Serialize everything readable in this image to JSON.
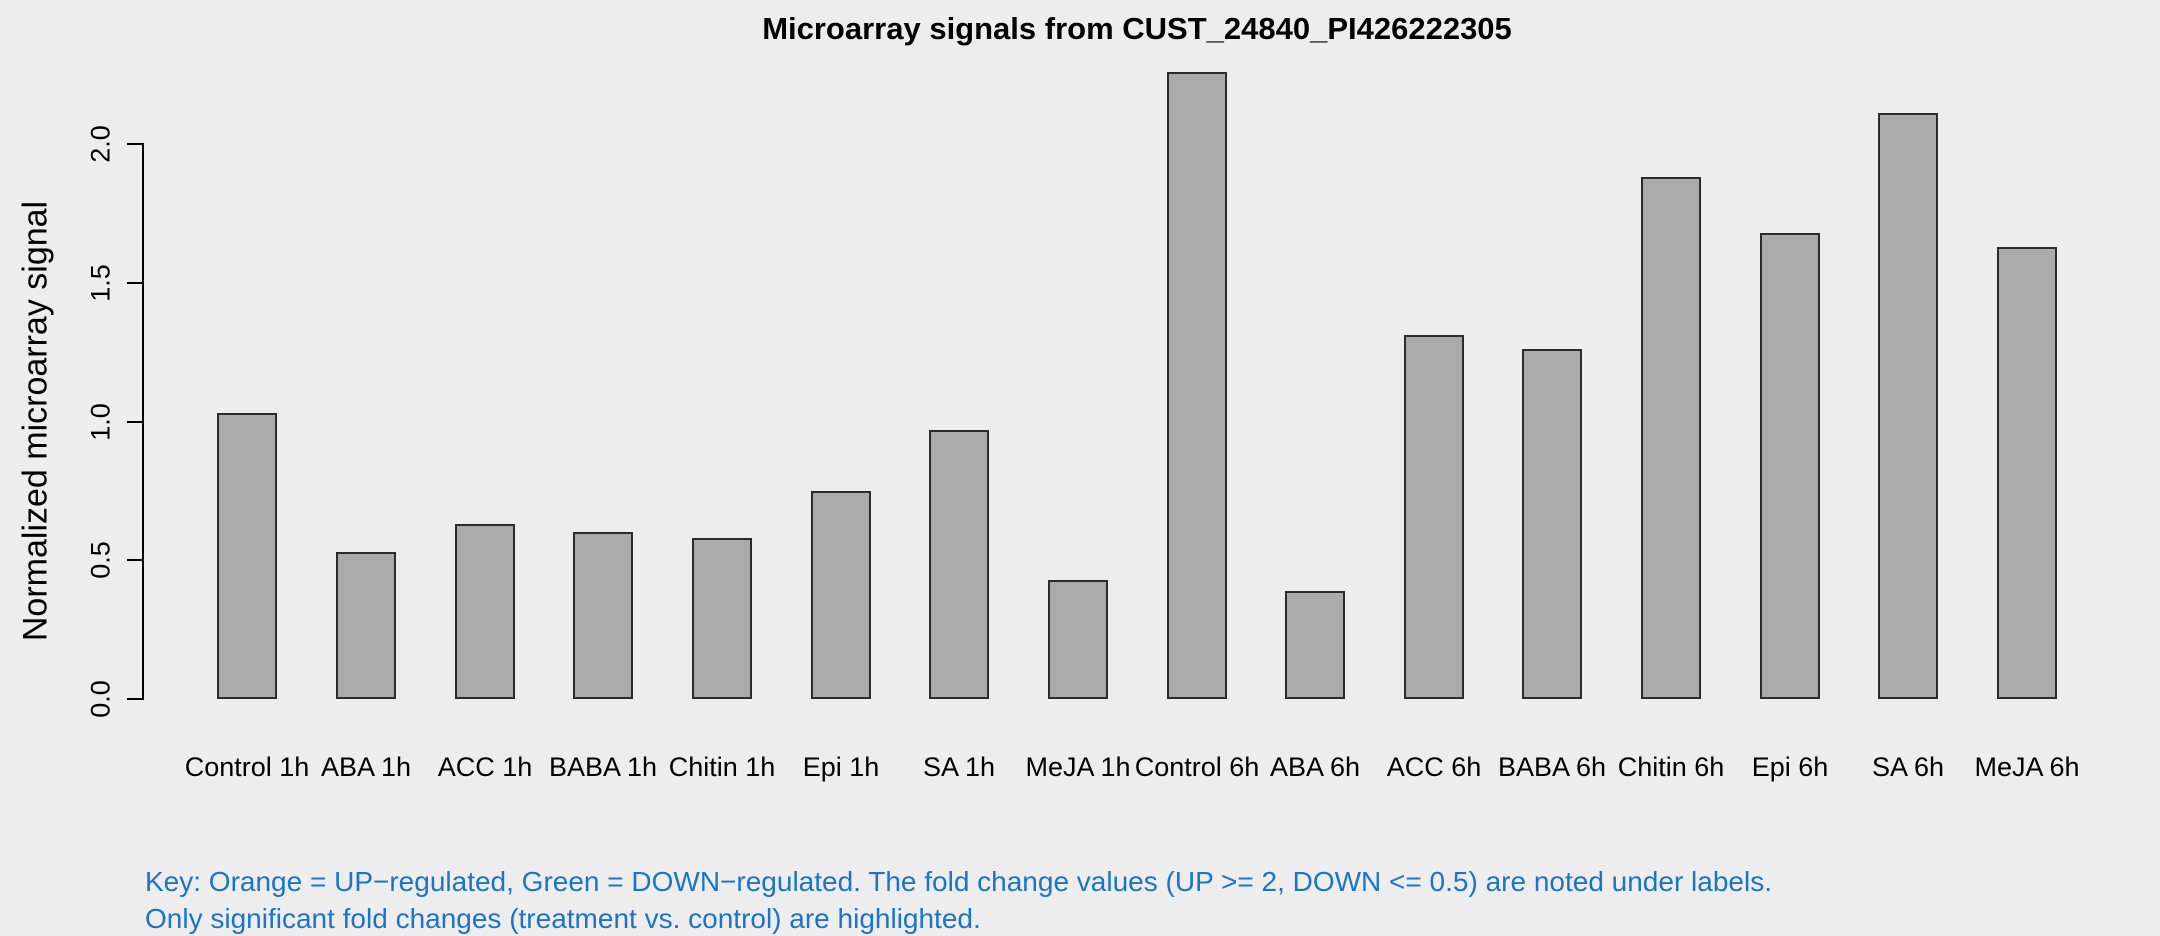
{
  "page": {
    "background": "#EDEDED"
  },
  "chart_data": {
    "type": "bar",
    "title": "Microarray signals from CUST_24840_PI426222305",
    "xlabel": "",
    "ylabel": "Normalized microarray signal",
    "categories": [
      "Control 1h",
      "ABA 1h",
      "ACC 1h",
      "BABA 1h",
      "Chitin 1h",
      "Epi 1h",
      "SA 1h",
      "MeJA 1h",
      "Control 6h",
      "ABA 6h",
      "ACC 6h",
      "BABA 6h",
      "Chitin 6h",
      "Epi 6h",
      "SA 6h",
      "MeJA 6h"
    ],
    "values": [
      1.03,
      0.53,
      0.63,
      0.6,
      0.58,
      0.75,
      0.97,
      0.43,
      2.26,
      0.39,
      1.31,
      1.26,
      1.88,
      1.68,
      2.11,
      1.63
    ],
    "ytick_labels": [
      "0.0",
      "0.5",
      "1.0",
      "1.5",
      "2.0"
    ],
    "yticks": [
      0.0,
      0.5,
      1.0,
      1.5,
      2.0
    ],
    "ylim": [
      0,
      2.32
    ],
    "grid": false,
    "legend_position": "none",
    "bar_fill_color": "#ABABAB",
    "bar_border_color": "#2B2B2B",
    "background_color": "#EDEDED",
    "title_color": "#000000",
    "axis_color": "#000000"
  },
  "footnote": {
    "line1": "Key: Orange = UP−regulated, Green = DOWN−regulated. The fold change values (UP >= 2, DOWN <= 0.5) are noted under labels.",
    "line2": "Only significant fold changes (treatment vs. control) are highlighted.",
    "color": "#1B74C7"
  }
}
